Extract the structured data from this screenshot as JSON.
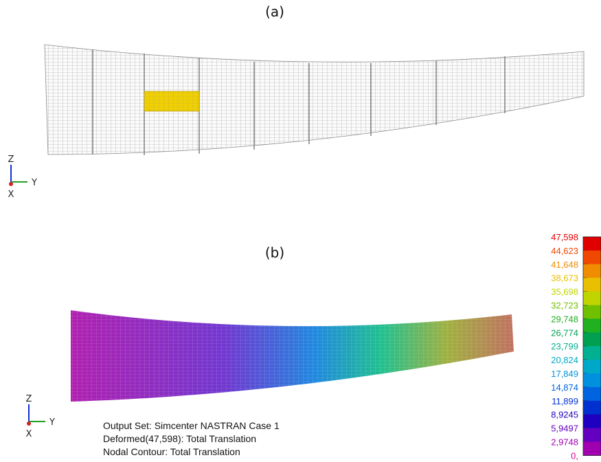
{
  "panels": [
    {
      "label": "(a)",
      "triad": {
        "z": "Z",
        "y": "Y",
        "x": "X"
      }
    },
    {
      "label": "(b)",
      "triad": {
        "z": "Z",
        "y": "Y",
        "x": "X"
      },
      "info": [
        "Output Set: Simcenter NASTRAN Case 1",
        "Deformed(47,598): Total Translation",
        "Nodal Contour: Total Translation"
      ],
      "legend": [
        {
          "label": "47,598",
          "color": "#e00000"
        },
        {
          "label": "44,623",
          "color": "#f04800"
        },
        {
          "label": "41,648",
          "color": "#f08c00"
        },
        {
          "label": "38,673",
          "color": "#e8c000"
        },
        {
          "label": "35,698",
          "color": "#c0d400"
        },
        {
          "label": "32,723",
          "color": "#70c000"
        },
        {
          "label": "29,748",
          "color": "#20b020"
        },
        {
          "label": "26,774",
          "color": "#00a050"
        },
        {
          "label": "23,799",
          "color": "#00b090"
        },
        {
          "label": "20,824",
          "color": "#00a8c8"
        },
        {
          "label": "17,849",
          "color": "#0090e0"
        },
        {
          "label": "14,874",
          "color": "#0064e0"
        },
        {
          "label": "11,899",
          "color": "#0030d0"
        },
        {
          "label": "8,9245",
          "color": "#2000c0"
        },
        {
          "label": "5,9497",
          "color": "#6400c0"
        },
        {
          "label": "2,9748",
          "color": "#a000b0"
        },
        {
          "label": "0,",
          "color": "#e000a0"
        }
      ]
    }
  ]
}
